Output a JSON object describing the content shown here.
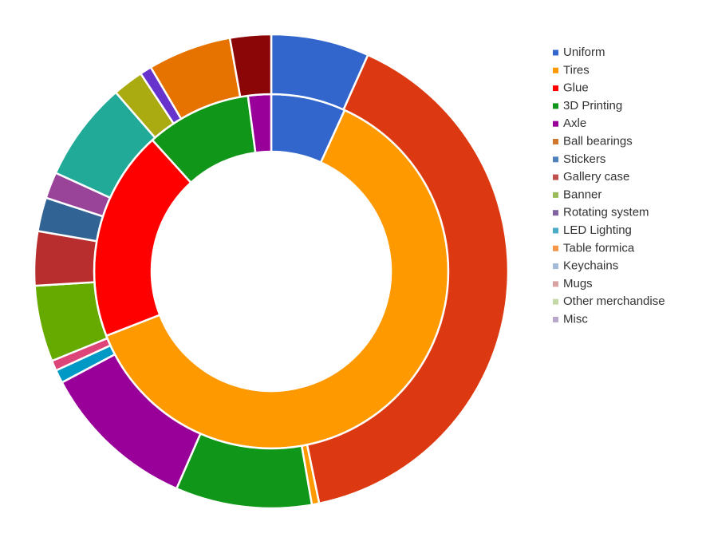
{
  "chart_data": {
    "type": "donut",
    "legend": [
      {
        "name": "Uniform",
        "color": "#3366cc"
      },
      {
        "name": "Tires",
        "color": "#ff9900"
      },
      {
        "name": "Glue",
        "color": "#ff0000"
      },
      {
        "name": "3D Printing",
        "color": "#109618"
      },
      {
        "name": "Axle",
        "color": "#990099"
      },
      {
        "name": "Ball bearings",
        "color": "#d1782e"
      },
      {
        "name": "Stickers",
        "color": "#4f81bd"
      },
      {
        "name": "Gallery case",
        "color": "#c0504d"
      },
      {
        "name": "Banner",
        "color": "#9bbb59"
      },
      {
        "name": "Rotating system",
        "color": "#8064a2"
      },
      {
        "name": "LED Lighting",
        "color": "#4bacc6"
      },
      {
        "name": "Table formica",
        "color": "#f79646"
      },
      {
        "name": "Keychains",
        "color": "#a5b9d9"
      },
      {
        "name": "Mugs",
        "color": "#d9a3a2"
      },
      {
        "name": "Other merchandise",
        "color": "#c4d8a8"
      },
      {
        "name": "Misc",
        "color": "#b8a9cc"
      }
    ],
    "rings": [
      {
        "values": [
          6.8,
          62.2,
          19.2,
          9.6,
          2.1
        ],
        "colors": [
          "#3366cc",
          "#ff9900",
          "#ff0000",
          "#109618",
          "#990099"
        ]
      },
      {
        "values": [
          6.7,
          40.1,
          0.5,
          9.3,
          10.7,
          0.9,
          0.7,
          5.2,
          3.7,
          2.3,
          1.8,
          6.8,
          2.1,
          0.8,
          5.7,
          2.8
        ],
        "colors": [
          "#3366cc",
          "#dc3912",
          "#ff9900",
          "#109618",
          "#990099",
          "#0099c6",
          "#dd4477",
          "#66aa00",
          "#b82e2e",
          "#316395",
          "#994499",
          "#22aa99",
          "#aaaa11",
          "#6633cc",
          "#e67300",
          "#8b0707"
        ]
      }
    ]
  }
}
